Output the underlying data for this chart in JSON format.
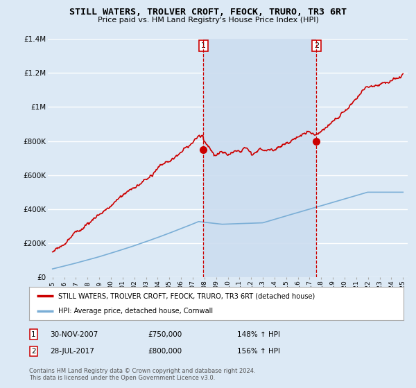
{
  "title": "STILL WATERS, TROLVER CROFT, FEOCK, TRURO, TR3 6RT",
  "subtitle": "Price paid vs. HM Land Registry's House Price Index (HPI)",
  "background_color": "#dce9f5",
  "plot_bg_color": "#dce9f5",
  "ylim": [
    0,
    1400000
  ],
  "yticks": [
    0,
    200000,
    400000,
    600000,
    800000,
    1000000,
    1200000,
    1400000
  ],
  "ytick_labels": [
    "£0",
    "£200K",
    "£400K",
    "£600K",
    "£800K",
    "£1M",
    "£1.2M",
    "£1.4M"
  ],
  "x_start_year": 1995,
  "x_end_year": 2025,
  "purchase1_year": 2007.92,
  "purchase1_price": 750000,
  "purchase2_year": 2017.58,
  "purchase2_price": 800000,
  "red_line_color": "#cc0000",
  "blue_line_color": "#7aaed6",
  "shade_color": "#ccddf0",
  "vline_color": "#cc0000",
  "grid_color": "#ffffff",
  "legend_label_red": "STILL WATERS, TROLVER CROFT, FEOCK, TRURO, TR3 6RT (detached house)",
  "legend_label_blue": "HPI: Average price, detached house, Cornwall",
  "footer_text": "Contains HM Land Registry data © Crown copyright and database right 2024.\nThis data is licensed under the Open Government Licence v3.0."
}
